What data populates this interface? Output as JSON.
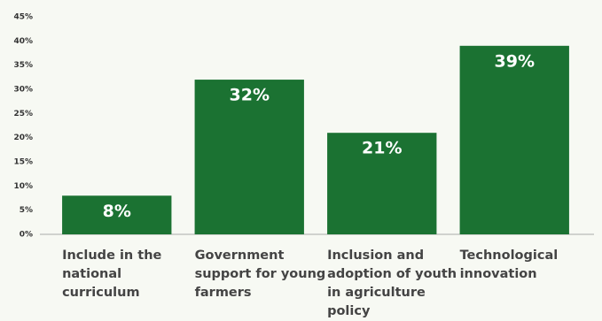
{
  "chart_data": {
    "type": "bar",
    "categories": [
      "Include in the national curriculum",
      "Government support for young farmers",
      "Inclusion and adoption of youth in agriculture policy",
      "Technological innovation"
    ],
    "values": [
      8,
      32,
      21,
      39
    ],
    "value_labels": [
      "8%",
      "32%",
      "21%",
      "39%"
    ],
    "color": "#1b7232",
    "ylim": [
      0,
      45
    ],
    "yticks": [
      {
        "value": 0,
        "label": "0%"
      },
      {
        "value": 5,
        "label": "5%"
      },
      {
        "value": 10,
        "label": "10%"
      },
      {
        "value": 15,
        "label": "15%"
      },
      {
        "value": 20,
        "label": "20%"
      },
      {
        "value": 25,
        "label": "25%"
      },
      {
        "value": 30,
        "label": "30%"
      },
      {
        "value": 35,
        "label": "35%"
      },
      {
        "value": 40,
        "label": "40%"
      },
      {
        "value": 45,
        "label": "45%"
      }
    ],
    "grid": false
  }
}
